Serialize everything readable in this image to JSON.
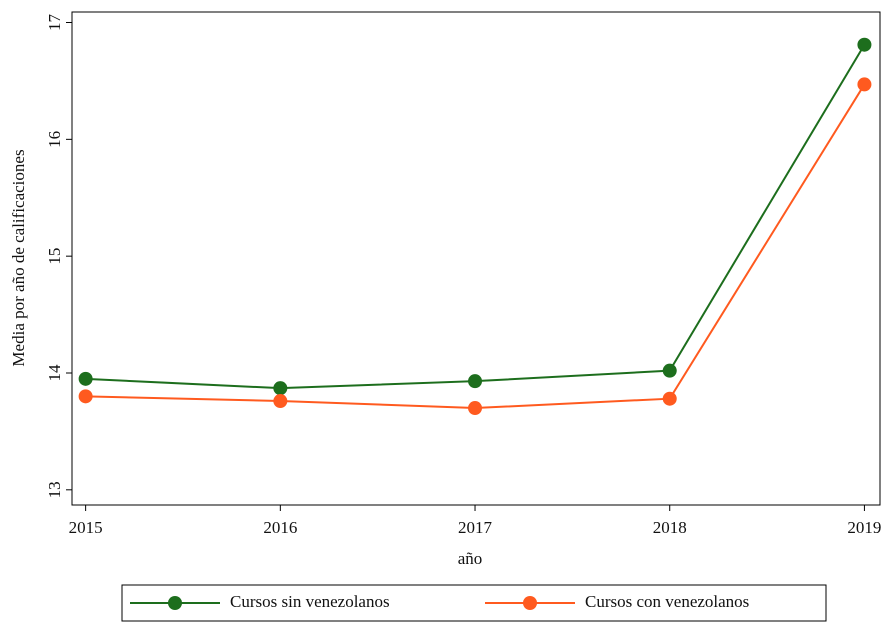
{
  "chart_data": {
    "type": "line",
    "x": [
      2015,
      2016,
      2017,
      2018,
      2019
    ],
    "xlabel": "año",
    "ylabel": "Media por año de calificaciones",
    "series": [
      {
        "name": "Cursos sin venezolanos",
        "color": "#1d6e1d",
        "values": [
          13.95,
          13.87,
          13.93,
          14.02,
          16.81
        ]
      },
      {
        "name": "Cursos con venezolanos",
        "color": "#ff5a1f",
        "values": [
          13.8,
          13.76,
          13.7,
          13.78,
          16.47
        ]
      }
    ],
    "xlim": [
      2014.93,
      2019.08
    ],
    "xticks": [
      2015,
      2016,
      2017,
      2018,
      2019
    ],
    "ylim": [
      12.87,
      17.09
    ],
    "yticks": [
      13,
      14,
      15,
      16,
      17
    ],
    "grid": false,
    "legend": "bottom"
  }
}
